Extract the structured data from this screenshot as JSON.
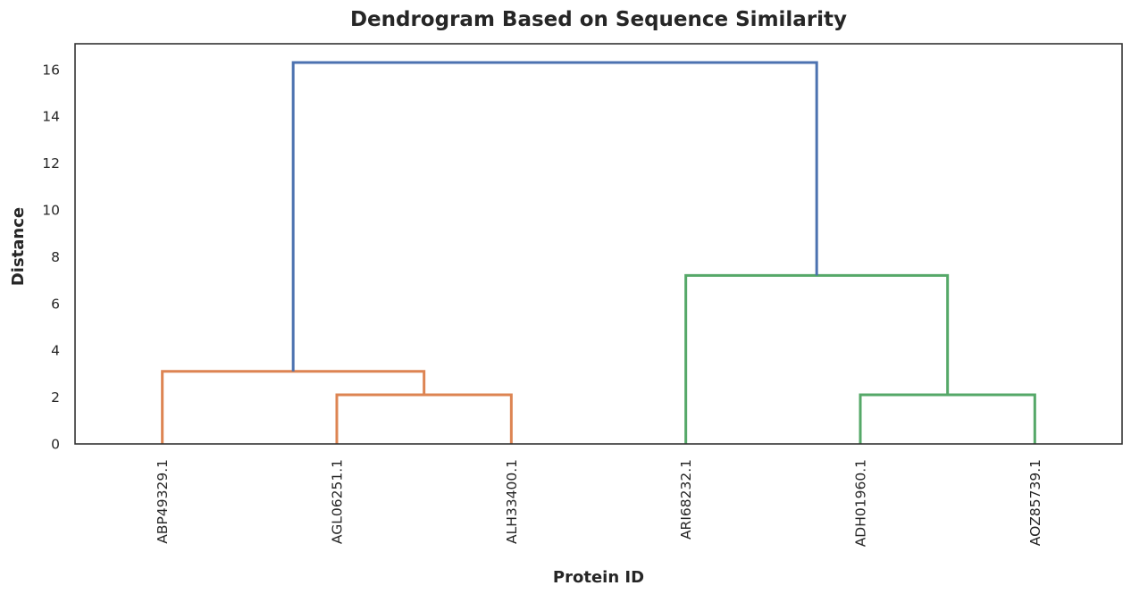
{
  "chart_data": {
    "type": "dendrogram",
    "title": "Dendrogram Based on Sequence Similarity",
    "xlabel": "Protein ID",
    "ylabel": "Distance",
    "ylim": [
      0,
      17.1
    ],
    "yticks": [
      0,
      2,
      4,
      6,
      8,
      10,
      12,
      14,
      16
    ],
    "grid": false,
    "leaves": [
      "ABP49329.1",
      "AGL06251.1",
      "ALH33400.1",
      "ARI68232.1",
      "ADH01960.1",
      "AOZ85739.1"
    ],
    "colors": {
      "cluster_1": "#DD8452",
      "cluster_2": "#55A868",
      "root": "#4C72B0"
    },
    "links": [
      {
        "left": "AGL06251.1",
        "right": "ALH33400.1",
        "distance": 2.1,
        "color": "#DD8452"
      },
      {
        "left": "ABP49329.1",
        "right": "(AGL06251.1, ALH33400.1)",
        "distance": 3.1,
        "color": "#DD8452"
      },
      {
        "left": "ADH01960.1",
        "right": "AOZ85739.1",
        "distance": 2.1,
        "color": "#55A868"
      },
      {
        "left": "ARI68232.1",
        "right": "(ADH01960.1, AOZ85739.1)",
        "distance": 7.2,
        "color": "#55A868"
      },
      {
        "left": "(ABP49329.1, AGL06251.1, ALH33400.1)",
        "right": "(ARI68232.1, ADH01960.1, AOZ85739.1)",
        "distance": 16.3,
        "color": "#4C72B0"
      }
    ]
  }
}
